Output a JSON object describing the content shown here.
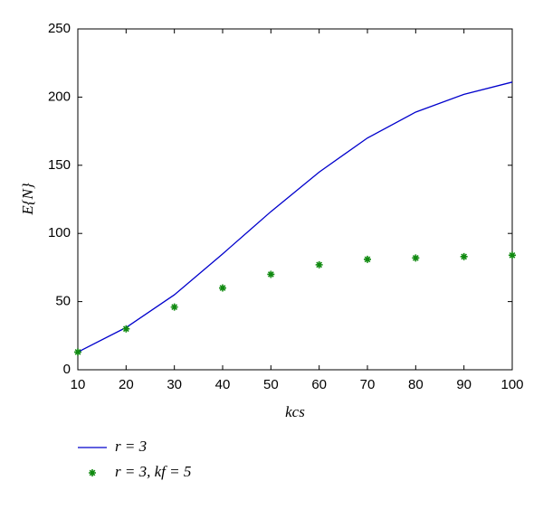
{
  "chart_data": {
    "type": "line",
    "x_label": "kcs",
    "y_label": "E{N}",
    "x": [
      10,
      20,
      30,
      40,
      50,
      60,
      70,
      80,
      90,
      100
    ],
    "series": [
      {
        "name": "r = 3",
        "type": "line",
        "color": "#0000cc",
        "values": [
          13,
          31,
          55,
          85,
          116,
          145,
          170,
          189,
          202,
          211
        ]
      },
      {
        "name": "r = 3, kf = 5",
        "type": "scatter",
        "color": "#108a10",
        "values": [
          13,
          30,
          46,
          60,
          70,
          77,
          81,
          82,
          83,
          84
        ]
      }
    ],
    "xlim": [
      10,
      100
    ],
    "xticks": [
      10,
      20,
      30,
      40,
      50,
      60,
      70,
      80,
      90,
      100
    ],
    "ylim": [
      0,
      250
    ],
    "yticks": [
      0,
      50,
      100,
      150,
      200,
      250
    ],
    "grid": false,
    "legend": "bottom-left"
  }
}
